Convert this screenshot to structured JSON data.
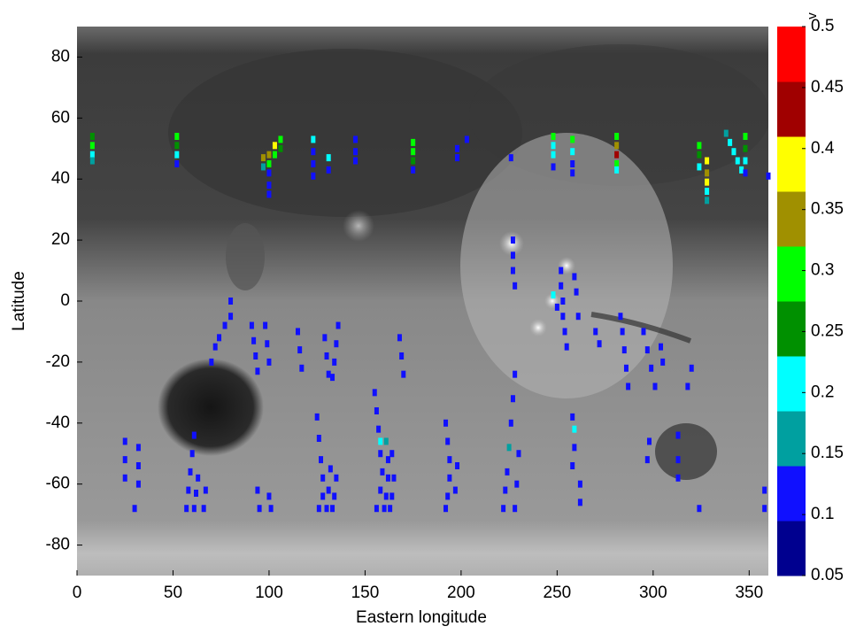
{
  "chart_data": {
    "type": "scatter",
    "xlabel": "Eastern longitude",
    "ylabel": "Latitude",
    "xlim": [
      0,
      360
    ],
    "xticks": [
      0,
      50,
      100,
      150,
      200,
      250,
      300,
      350
    ],
    "ylim": [
      -90,
      90
    ],
    "yticks": [
      -80,
      -60,
      -40,
      -20,
      0,
      20,
      40,
      60,
      80
    ],
    "x": [
      8,
      8,
      8,
      8,
      52,
      52,
      52,
      52,
      97,
      97,
      100,
      100,
      100,
      100,
      100,
      103,
      103,
      106,
      106,
      123,
      123,
      123,
      123,
      131,
      131,
      145,
      145,
      145,
      175,
      175,
      175,
      175,
      198,
      198,
      203,
      226,
      248,
      248,
      248,
      248,
      258,
      258,
      258,
      258,
      281,
      281,
      281,
      281,
      281,
      324,
      324,
      324,
      328,
      328,
      328,
      328,
      328,
      338,
      340,
      342,
      344,
      346,
      348,
      348,
      348,
      348,
      360,
      227,
      227,
      227,
      228,
      252,
      252,
      253,
      253,
      254,
      255,
      248,
      250,
      259,
      260,
      261,
      270,
      272,
      80,
      80,
      77,
      74,
      72,
      70,
      91,
      92,
      93,
      94,
      98,
      99,
      100,
      115,
      116,
      117,
      136,
      135,
      134,
      133,
      129,
      130,
      131,
      168,
      169,
      170,
      283,
      284,
      285,
      286,
      287,
      295,
      297,
      299,
      301,
      304,
      305,
      320,
      318,
      25,
      25,
      25,
      32,
      32,
      32,
      30,
      61,
      60,
      59,
      58,
      57,
      63,
      62,
      61,
      67,
      66,
      94,
      95,
      100,
      101,
      125,
      126,
      127,
      128,
      128,
      126,
      132,
      131,
      130,
      135,
      134,
      133,
      155,
      156,
      157,
      158,
      158,
      159,
      158,
      156,
      161,
      162,
      162,
      161,
      160,
      164,
      165,
      164,
      163,
      192,
      193,
      194,
      194,
      193,
      192,
      198,
      197,
      228,
      227,
      226,
      225,
      224,
      223,
      222,
      230,
      229,
      228,
      258,
      259,
      259,
      258,
      262,
      262,
      298,
      297,
      313,
      313,
      313,
      324,
      358,
      358
    ],
    "y": [
      54,
      51,
      48,
      46,
      54,
      51,
      48,
      45,
      47,
      44,
      48,
      45,
      42,
      38,
      35,
      51,
      48,
      53,
      50,
      53,
      49,
      45,
      41,
      47,
      43,
      53,
      49,
      46,
      52,
      49,
      46,
      43,
      50,
      47,
      53,
      47,
      54,
      51,
      48,
      44,
      53,
      49,
      45,
      42,
      54,
      51,
      48,
      45,
      43,
      51,
      48,
      44,
      46,
      42,
      39,
      36,
      33,
      55,
      52,
      49,
      46,
      43,
      54,
      50,
      46,
      42,
      41,
      20,
      15,
      10,
      5,
      10,
      5,
      0,
      -5,
      -10,
      -15,
      2,
      -2,
      8,
      3,
      -5,
      -10,
      -14,
      0,
      -5,
      -8,
      -12,
      -15,
      -20,
      -8,
      -13,
      -18,
      -23,
      -8,
      -14,
      -20,
      -10,
      -16,
      -22,
      -8,
      -14,
      -20,
      -25,
      -12,
      -18,
      -24,
      -12,
      -18,
      -24,
      -5,
      -10,
      -16,
      -22,
      -28,
      -10,
      -16,
      -22,
      -28,
      -15,
      -20,
      -22,
      -28,
      -46,
      -52,
      -58,
      -48,
      -54,
      -60,
      -68,
      -44,
      -50,
      -56,
      -62,
      -68,
      -58,
      -63,
      -68,
      -62,
      -68,
      -62,
      -68,
      -64,
      -68,
      -38,
      -45,
      -52,
      -58,
      -64,
      -68,
      -55,
      -62,
      -68,
      -58,
      -64,
      -68,
      -30,
      -36,
      -42,
      -46,
      -50,
      -56,
      -62,
      -68,
      -46,
      -52,
      -58,
      -64,
      -68,
      -50,
      -58,
      -64,
      -68,
      -40,
      -46,
      -52,
      -58,
      -64,
      -68,
      -54,
      -62,
      -24,
      -32,
      -40,
      -48,
      -56,
      -62,
      -68,
      -50,
      -60,
      -68,
      -38,
      -42,
      -48,
      -54,
      -60,
      -66,
      -46,
      -52,
      -44,
      -52,
      -58,
      -68,
      -62,
      -68
    ],
    "values": [
      0.25,
      0.3,
      0.2,
      0.15,
      0.3,
      0.25,
      0.2,
      0.1,
      0.35,
      0.15,
      0.35,
      0.3,
      0.1,
      0.1,
      0.1,
      0.4,
      0.3,
      0.3,
      0.25,
      0.2,
      0.1,
      0.1,
      0.1,
      0.2,
      0.1,
      0.1,
      0.1,
      0.1,
      0.3,
      0.3,
      0.25,
      0.1,
      0.1,
      0.1,
      0.1,
      0.1,
      0.3,
      0.2,
      0.2,
      0.1,
      0.3,
      0.2,
      0.1,
      0.1,
      0.3,
      0.35,
      0.45,
      0.3,
      0.2,
      0.3,
      0.25,
      0.2,
      0.4,
      0.35,
      0.4,
      0.2,
      0.15,
      0.15,
      0.2,
      0.2,
      0.2,
      0.2,
      0.3,
      0.25,
      0.2,
      0.1,
      0.1,
      0.1,
      0.1,
      0.1,
      0.1,
      0.1,
      0.1,
      0.1,
      0.1,
      0.1,
      0.1,
      0.2,
      0.1,
      0.1,
      0.1,
      0.1,
      0.1,
      0.1,
      0.1,
      0.1,
      0.1,
      0.1,
      0.1,
      0.1,
      0.1,
      0.1,
      0.1,
      0.1,
      0.1,
      0.1,
      0.1,
      0.1,
      0.1,
      0.1,
      0.1,
      0.1,
      0.1,
      0.1,
      0.1,
      0.1,
      0.1,
      0.1,
      0.1,
      0.1,
      0.1,
      0.1,
      0.1,
      0.1,
      0.1,
      0.1,
      0.1,
      0.1,
      0.1,
      0.1,
      0.1,
      0.1,
      0.1,
      0.1,
      0.1,
      0.1,
      0.1,
      0.1,
      0.1,
      0.1,
      0.1,
      0.1,
      0.1,
      0.1,
      0.1,
      0.1,
      0.1,
      0.1,
      0.1,
      0.1,
      0.1,
      0.1,
      0.1,
      0.1,
      0.1,
      0.1,
      0.1,
      0.1,
      0.1,
      0.1,
      0.1,
      0.1,
      0.1,
      0.1,
      0.1,
      0.1,
      0.1,
      0.1,
      0.1,
      0.2,
      0.1,
      0.1,
      0.1,
      0.1,
      0.15,
      0.1,
      0.1,
      0.1,
      0.1,
      0.1,
      0.1,
      0.1,
      0.1,
      0.1,
      0.1,
      0.1,
      0.1,
      0.1,
      0.1,
      0.1,
      0.1,
      0.1,
      0.1,
      0.1,
      0.15,
      0.1,
      0.1,
      0.1,
      0.1,
      0.1,
      0.1,
      0.1,
      0.2,
      0.1,
      0.1,
      0.1,
      0.1,
      0.1,
      0.1,
      0.1,
      0.1,
      0.1,
      0.1,
      0.1,
      0.1
    ],
    "colorbar": {
      "label": "v",
      "clim": [
        0.05,
        0.5
      ],
      "ticks": [
        0.05,
        0.1,
        0.15,
        0.2,
        0.25,
        0.3,
        0.35,
        0.4,
        0.45,
        0.5
      ],
      "colors": [
        "#00008f",
        "#1010ff",
        "#00a0a0",
        "#00ffff",
        "#009000",
        "#00ff00",
        "#a09000",
        "#ffff00",
        "#a00000",
        "#ff0000"
      ]
    }
  }
}
